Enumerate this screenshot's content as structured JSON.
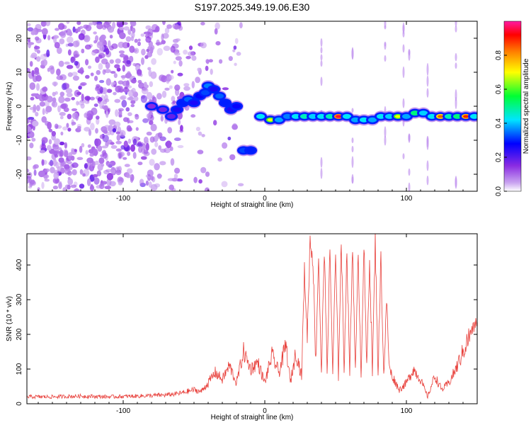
{
  "title": "S197.2025.349.19.06.E30",
  "colors": {
    "snr_line": "#e8413c",
    "axis": "#000000",
    "ridge_low": "#1a1aff",
    "ridge_mid": "#00cc66",
    "ridge_high": "#ff1a1a"
  },
  "chart_data": [
    {
      "type": "heatmap",
      "name": "spectrogram",
      "xlabel": "Height of straight line (km)",
      "ylabel": "Frequency (Hz)",
      "xlim": [
        -168,
        150
      ],
      "ylim": [
        -25,
        25
      ],
      "xticks": [
        {
          "value": -100,
          "label": "-100"
        },
        {
          "value": 0,
          "label": "0"
        },
        {
          "value": 100,
          "label": "100"
        }
      ],
      "yticks": [
        {
          "value": 20,
          "label": "20"
        },
        {
          "value": 10,
          "label": "10"
        },
        {
          "value": 0,
          "label": "0"
        },
        {
          "value": -10,
          "label": "-10"
        },
        {
          "value": -20,
          "label": "-20"
        }
      ],
      "colorbar": {
        "label": "Normalized spectral amplitude",
        "range": [
          0,
          1
        ],
        "colormap": "rainbow",
        "ticks": [
          {
            "value": 0.0,
            "label": "0.0"
          },
          {
            "value": 0.2,
            "label": "0.2"
          },
          {
            "value": 0.4,
            "label": "0.4"
          },
          {
            "value": 0.6,
            "label": "0.6"
          },
          {
            "value": 0.8,
            "label": "0.8"
          }
        ]
      },
      "noise_region": {
        "x_from": -168,
        "x_to": -40,
        "level": 0.12
      },
      "ridge": [
        {
          "x": -80,
          "y": 0,
          "a": 0.18
        },
        {
          "x": -72,
          "y": -1,
          "a": 0.2
        },
        {
          "x": -66,
          "y": -3,
          "a": 0.22
        },
        {
          "x": -62,
          "y": -1,
          "a": 0.3
        },
        {
          "x": -58,
          "y": 1,
          "a": 0.35
        },
        {
          "x": -54,
          "y": 2,
          "a": 0.4
        },
        {
          "x": -50,
          "y": 1,
          "a": 0.3
        },
        {
          "x": -46,
          "y": 3,
          "a": 0.32
        },
        {
          "x": -42,
          "y": 4,
          "a": 0.38
        },
        {
          "x": -40,
          "y": 6,
          "a": 0.42
        },
        {
          "x": -36,
          "y": 5,
          "a": 0.3
        },
        {
          "x": -32,
          "y": 3,
          "a": 0.4
        },
        {
          "x": -28,
          "y": 1,
          "a": 0.35
        },
        {
          "x": -24,
          "y": -1,
          "a": 0.3
        },
        {
          "x": -20,
          "y": 0,
          "a": 0.32
        },
        {
          "x": -15,
          "y": -13,
          "a": 0.38
        },
        {
          "x": -10,
          "y": -13,
          "a": 0.35
        },
        {
          "x": -3,
          "y": -3,
          "a": 0.5
        },
        {
          "x": 4,
          "y": -4,
          "a": 0.7
        },
        {
          "x": 10,
          "y": -4,
          "a": 0.45
        },
        {
          "x": 16,
          "y": -3,
          "a": 0.42
        },
        {
          "x": 22,
          "y": -3,
          "a": 0.5
        },
        {
          "x": 28,
          "y": -3,
          "a": 0.55
        },
        {
          "x": 34,
          "y": -3,
          "a": 0.48
        },
        {
          "x": 40,
          "y": -3,
          "a": 0.5
        },
        {
          "x": 46,
          "y": -3,
          "a": 0.55
        },
        {
          "x": 52,
          "y": -3,
          "a": 0.95
        },
        {
          "x": 58,
          "y": -3,
          "a": 0.5
        },
        {
          "x": 64,
          "y": -4,
          "a": 0.45
        },
        {
          "x": 70,
          "y": -4,
          "a": 0.5
        },
        {
          "x": 76,
          "y": -4,
          "a": 0.45
        },
        {
          "x": 82,
          "y": -3,
          "a": 0.5
        },
        {
          "x": 88,
          "y": -3,
          "a": 0.48
        },
        {
          "x": 94,
          "y": -3,
          "a": 0.7
        },
        {
          "x": 100,
          "y": -3,
          "a": 0.45
        },
        {
          "x": 106,
          "y": -2,
          "a": 0.6
        },
        {
          "x": 112,
          "y": -2,
          "a": 0.48
        },
        {
          "x": 118,
          "y": -3,
          "a": 0.5
        },
        {
          "x": 124,
          "y": -3,
          "a": 0.85
        },
        {
          "x": 130,
          "y": -3,
          "a": 0.55
        },
        {
          "x": 136,
          "y": -3,
          "a": 0.6
        },
        {
          "x": 142,
          "y": -3,
          "a": 0.9
        },
        {
          "x": 148,
          "y": -3,
          "a": 0.5
        }
      ]
    },
    {
      "type": "line",
      "name": "snr",
      "xlabel": "Height of straight line (km)",
      "ylabel": "SNR (10 * v/v)",
      "xlim": [
        -168,
        150
      ],
      "ylim": [
        0,
        490
      ],
      "xticks": [
        {
          "value": -100,
          "label": "-100"
        },
        {
          "value": 0,
          "label": "0"
        },
        {
          "value": 100,
          "label": "100"
        }
      ],
      "yticks": [
        {
          "value": 0,
          "label": "0"
        },
        {
          "value": 100,
          "label": "100"
        },
        {
          "value": 200,
          "label": "200"
        },
        {
          "value": 300,
          "label": "300"
        },
        {
          "value": 400,
          "label": "400"
        }
      ],
      "series": [
        {
          "name": "SNR",
          "x": [
            -168,
            -150,
            -130,
            -110,
            -90,
            -70,
            -60,
            -50,
            -45,
            -40,
            -35,
            -30,
            -25,
            -20,
            -15,
            -10,
            -5,
            0,
            5,
            10,
            15,
            18,
            22,
            26,
            28,
            30,
            32,
            34,
            36,
            38,
            40,
            42,
            44,
            46,
            48,
            50,
            52,
            54,
            56,
            58,
            60,
            62,
            64,
            66,
            68,
            70,
            72,
            74,
            76,
            78,
            80,
            82,
            84,
            86,
            88,
            90,
            95,
            100,
            105,
            110,
            115,
            120,
            125,
            130,
            135,
            140,
            145,
            150
          ],
          "y": [
            20,
            20,
            22,
            20,
            22,
            25,
            30,
            40,
            35,
            60,
            90,
            70,
            110,
            60,
            150,
            100,
            120,
            60,
            140,
            90,
            170,
            60,
            150,
            80,
            380,
            200,
            470,
            420,
            120,
            430,
            80,
            460,
            90,
            440,
            90,
            430,
            80,
            470,
            100,
            440,
            90,
            460,
            90,
            430,
            80,
            460,
            100,
            420,
            90,
            470,
            90,
            420,
            80,
            300,
            100,
            80,
            40,
            60,
            100,
            70,
            20,
            80,
            40,
            60,
            100,
            150,
            200,
            240
          ]
        }
      ]
    }
  ]
}
